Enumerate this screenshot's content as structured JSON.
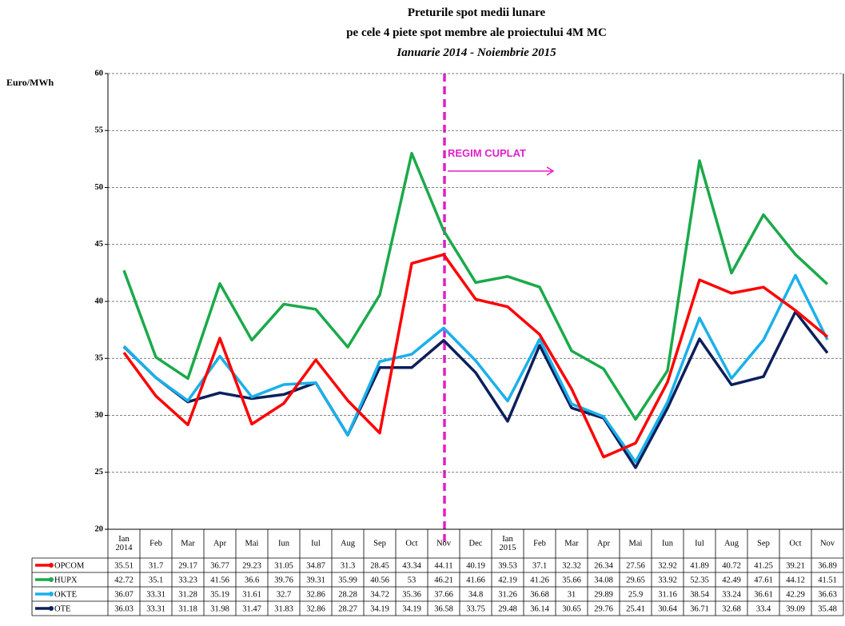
{
  "chart_data": {
    "type": "line",
    "title": "Preturile spot medii lunare",
    "subtitle": "pe cele 4 piete spot membre ale proiectului 4M MC",
    "period": "Ianuarie 2014 - Noiembrie 2015",
    "y_label": "Euro/MWh",
    "annotation": "REGIM CUPLAT",
    "categories": [
      "Ian 2014",
      "Feb",
      "Mar",
      "Apr",
      "Mai",
      "Iun",
      "Iul",
      "Aug",
      "Sep",
      "Oct",
      "Nov",
      "Dec",
      "Ian 2015",
      "Feb",
      "Mar",
      "Apr",
      "Mai",
      "Iun",
      "Iul",
      "Aug",
      "Sep",
      "Oct",
      "Nov"
    ],
    "series": [
      {
        "name": "OPCOM",
        "color": "#ff0000",
        "values": [
          35.51,
          31.7,
          29.17,
          36.77,
          29.23,
          31.05,
          34.87,
          31.3,
          28.45,
          43.34,
          44.11,
          40.19,
          39.53,
          37.1,
          32.32,
          26.34,
          27.56,
          32.92,
          41.89,
          40.72,
          41.25,
          39.21,
          36.89
        ]
      },
      {
        "name": "HUPX",
        "color": "#1aaa4a",
        "values": [
          42.72,
          35.1,
          33.23,
          41.56,
          36.6,
          39.76,
          39.31,
          35.99,
          40.56,
          53,
          46.21,
          41.66,
          42.19,
          41.26,
          35.66,
          34.08,
          29.65,
          33.92,
          52.35,
          42.49,
          47.61,
          44.12,
          41.51
        ]
      },
      {
        "name": "OKTE",
        "color": "#1ab0ea",
        "values": [
          36.07,
          33.31,
          31.28,
          35.19,
          31.61,
          32.7,
          32.86,
          28.28,
          34.72,
          35.36,
          37.66,
          34.8,
          31.26,
          36.68,
          31,
          29.89,
          25.9,
          31.16,
          38.54,
          33.24,
          36.61,
          42.29,
          36.63
        ]
      },
      {
        "name": "OTE",
        "color": "#0c1f5c",
        "values": [
          36.03,
          33.31,
          31.18,
          31.98,
          31.47,
          31.83,
          32.86,
          28.27,
          34.19,
          34.19,
          36.58,
          33.75,
          29.48,
          36.14,
          30.65,
          29.76,
          25.41,
          30.64,
          36.71,
          32.68,
          33.4,
          39.09,
          35.48
        ]
      }
    ],
    "ylim": [
      20,
      60
    ],
    "yticks": [
      20,
      25,
      30,
      35,
      40,
      45,
      50,
      55,
      60
    ],
    "grid": true
  }
}
